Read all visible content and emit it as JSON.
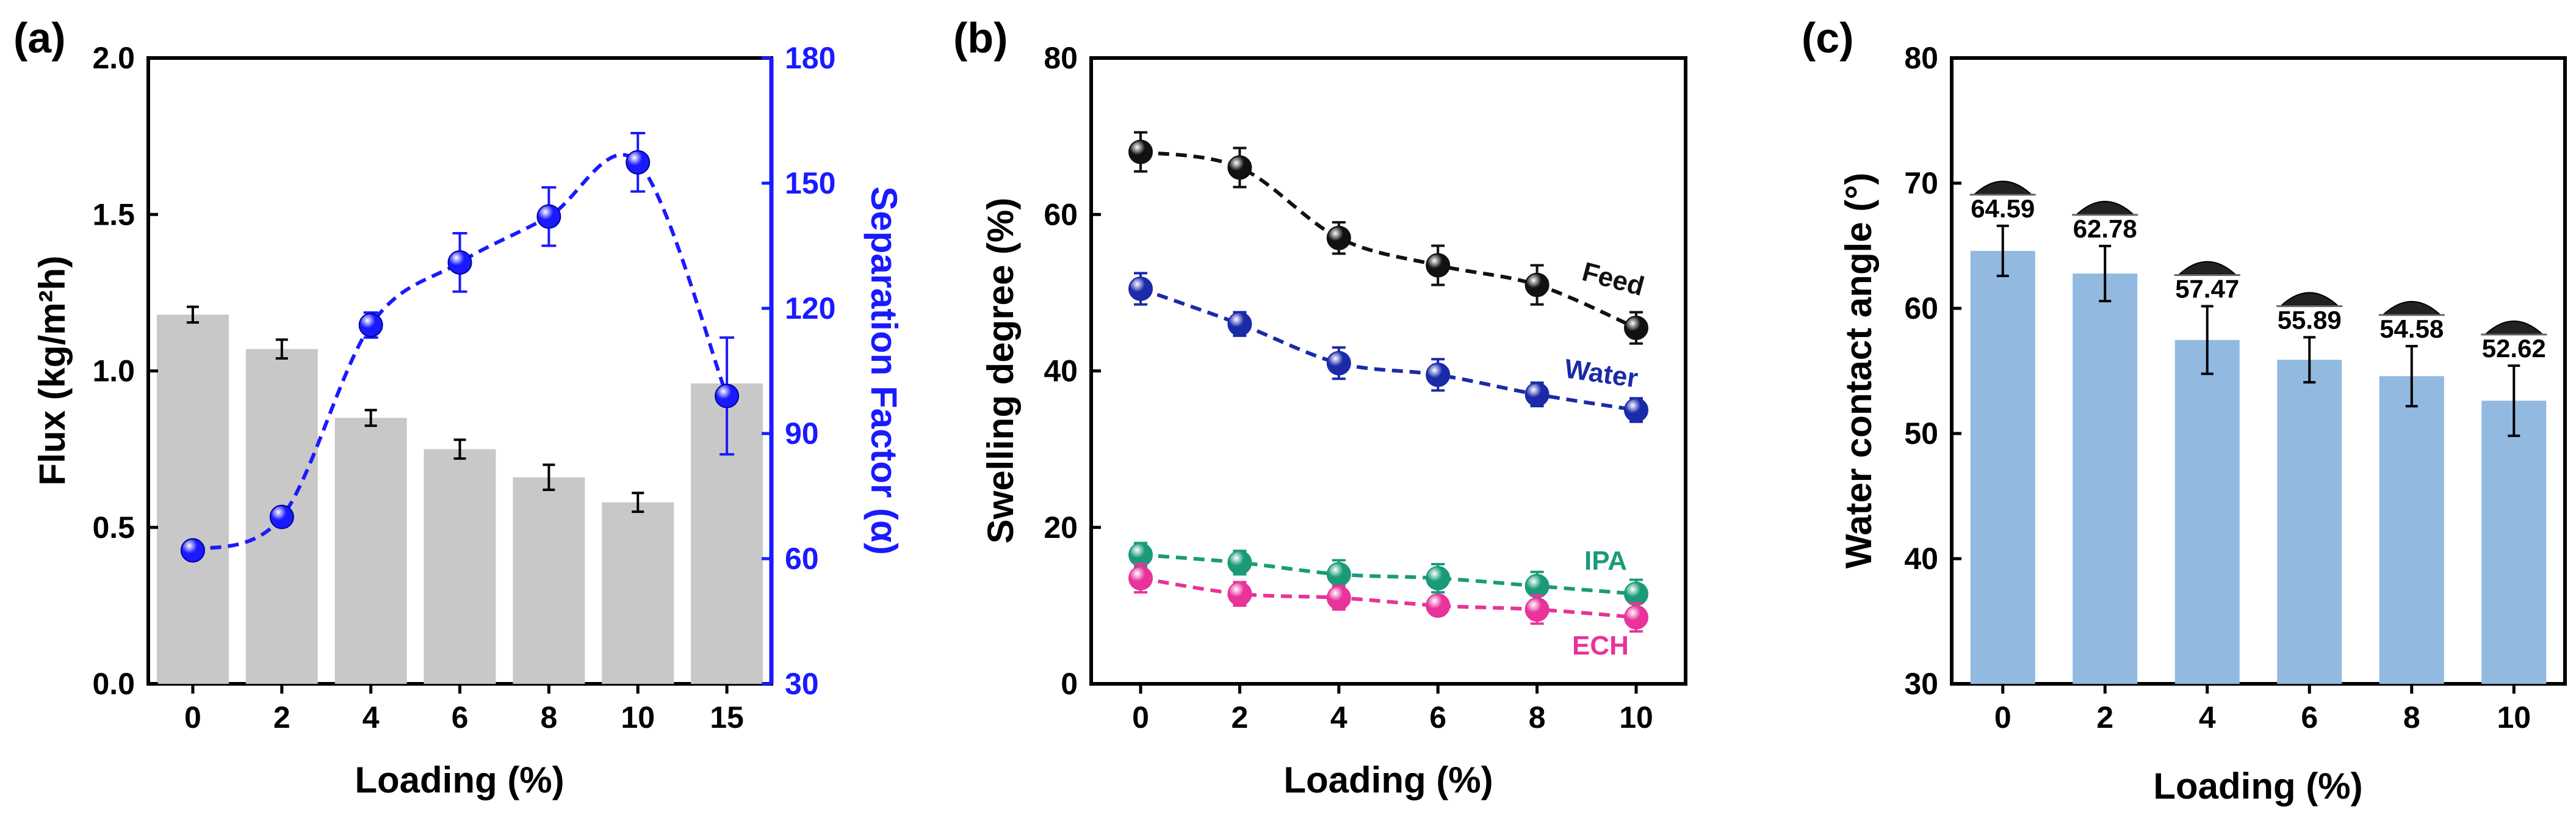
{
  "chart_data": [
    {
      "panel": "(a)",
      "type": "bar+line",
      "categories": [
        "0",
        "2",
        "4",
        "6",
        "8",
        "10",
        "15"
      ],
      "xlabel": "Loading (%)",
      "ylabel": "Flux (kg/m²h)",
      "ylabel_right": "Separation Factor (α)",
      "ylim": [
        0,
        2.0
      ],
      "yticks": [
        "0.0",
        "0.5",
        "1.0",
        "1.5",
        "2.0"
      ],
      "ylim_right": [
        30,
        180
      ],
      "yticks_right": [
        "30",
        "60",
        "90",
        "120",
        "150",
        "180"
      ],
      "series": [
        {
          "kind": "bar",
          "axis": "left",
          "color": "#c8c8c8",
          "values": [
            1.18,
            1.07,
            0.85,
            0.75,
            0.66,
            0.58,
            0.96
          ],
          "errors": [
            0.025,
            0.03,
            0.025,
            0.03,
            0.04,
            0.03,
            0.0
          ]
        },
        {
          "kind": "line",
          "axis": "right",
          "color": "#1a1aff",
          "values": [
            62,
            70,
            116,
            131,
            142,
            155,
            99
          ],
          "errors": [
            2,
            2,
            3,
            7,
            7,
            7,
            14
          ]
        }
      ],
      "colors": {
        "left_axis": "#000000",
        "right_axis": "#1a1aff"
      },
      "grid": false
    },
    {
      "panel": "(b)",
      "type": "line",
      "x": [
        0,
        2,
        4,
        6,
        8,
        10
      ],
      "xticks": [
        "0",
        "2",
        "4",
        "6",
        "8",
        "10"
      ],
      "xlabel": "Loading (%)",
      "ylabel": "Swelling degree (%)",
      "ylim": [
        0,
        80
      ],
      "yticks": [
        "0",
        "20",
        "40",
        "60",
        "80"
      ],
      "series": [
        {
          "name": "Feed",
          "color": "#111111",
          "values": [
            68,
            66,
            57,
            53.5,
            51,
            45.5
          ],
          "errors": [
            2.5,
            2.5,
            2,
            2.5,
            2.5,
            2
          ]
        },
        {
          "name": "Water",
          "color": "#1a2aa8",
          "values": [
            50.5,
            46,
            41,
            39.5,
            37,
            35
          ],
          "errors": [
            2,
            1.5,
            2,
            2,
            1.5,
            1.5
          ]
        },
        {
          "name": "IPA",
          "color": "#1a9a78",
          "values": [
            16.5,
            15.5,
            14,
            13.5,
            12.5,
            11.5
          ],
          "errors": [
            1.5,
            1.5,
            1.8,
            1.8,
            1.8,
            1.8
          ]
        },
        {
          "name": "ECH",
          "color": "#e8339a",
          "values": [
            13.5,
            11.5,
            11,
            10,
            9.5,
            8.5
          ],
          "errors": [
            1.8,
            1.5,
            1.5,
            1.2,
            1.8,
            1.8
          ]
        }
      ],
      "grid": false
    },
    {
      "panel": "(c)",
      "type": "bar",
      "categories": [
        "0",
        "2",
        "4",
        "6",
        "8",
        "10"
      ],
      "xlabel": "Loading (%)",
      "ylabel": "Water contact angle (°)",
      "ylim": [
        30,
        80
      ],
      "yticks": [
        "30",
        "40",
        "50",
        "60",
        "70",
        "80"
      ],
      "values": [
        64.59,
        62.78,
        57.47,
        55.89,
        54.58,
        52.62
      ],
      "value_labels": [
        "64.59",
        "62.78",
        "57.47",
        "55.89",
        "54.58",
        "52.62"
      ],
      "errors": [
        2,
        2.2,
        2.7,
        1.8,
        2.4,
        2.8
      ],
      "color": "#92b9e0",
      "grid": false
    }
  ]
}
